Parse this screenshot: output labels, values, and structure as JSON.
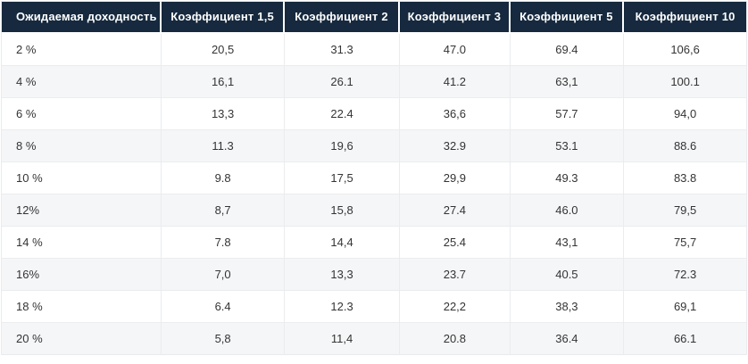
{
  "colors": {
    "header_bg": "#16293e",
    "header_text": "#ffffff",
    "row_bg": "#ffffff",
    "row_alt_bg": "#f5f6f8",
    "border": "#eaecee",
    "cell_text": "#343434"
  },
  "chart_data": {
    "type": "table",
    "title": "",
    "columns": [
      "Ожидаемая доходность",
      "Коэффициент 1,5",
      "Коэффициент 2",
      "Коэффициент 3",
      "Коэффициент 5",
      "Коэффициент 10"
    ],
    "rows": [
      [
        "2 %",
        "20,5",
        "31.3",
        "47.0",
        "69.4",
        "106,6"
      ],
      [
        "4 %",
        "16,1",
        "26.1",
        "41.2",
        "63,1",
        "100.1"
      ],
      [
        "6 %",
        "13,3",
        "22.4",
        "36,6",
        "57.7",
        "94,0"
      ],
      [
        "8 %",
        "11.3",
        "19,6",
        "32.9",
        "53.1",
        "88.6"
      ],
      [
        "10 %",
        "9.8",
        "17,5",
        "29,9",
        "49.3",
        "83.8"
      ],
      [
        "12%",
        "8,7",
        "15,8",
        "27.4",
        "46.0",
        "79,5"
      ],
      [
        "14 %",
        "7.8",
        "14,4",
        "25.4",
        "43,1",
        "75,7"
      ],
      [
        "16%",
        "7,0",
        "13,3",
        "23.7",
        "40.5",
        "72.3"
      ],
      [
        "18 %",
        "6.4",
        "12.3",
        "22,2",
        "38,3",
        "69,1"
      ],
      [
        "20 %",
        "5,8",
        "11,4",
        "20.8",
        "36.4",
        "66.1"
      ]
    ]
  }
}
